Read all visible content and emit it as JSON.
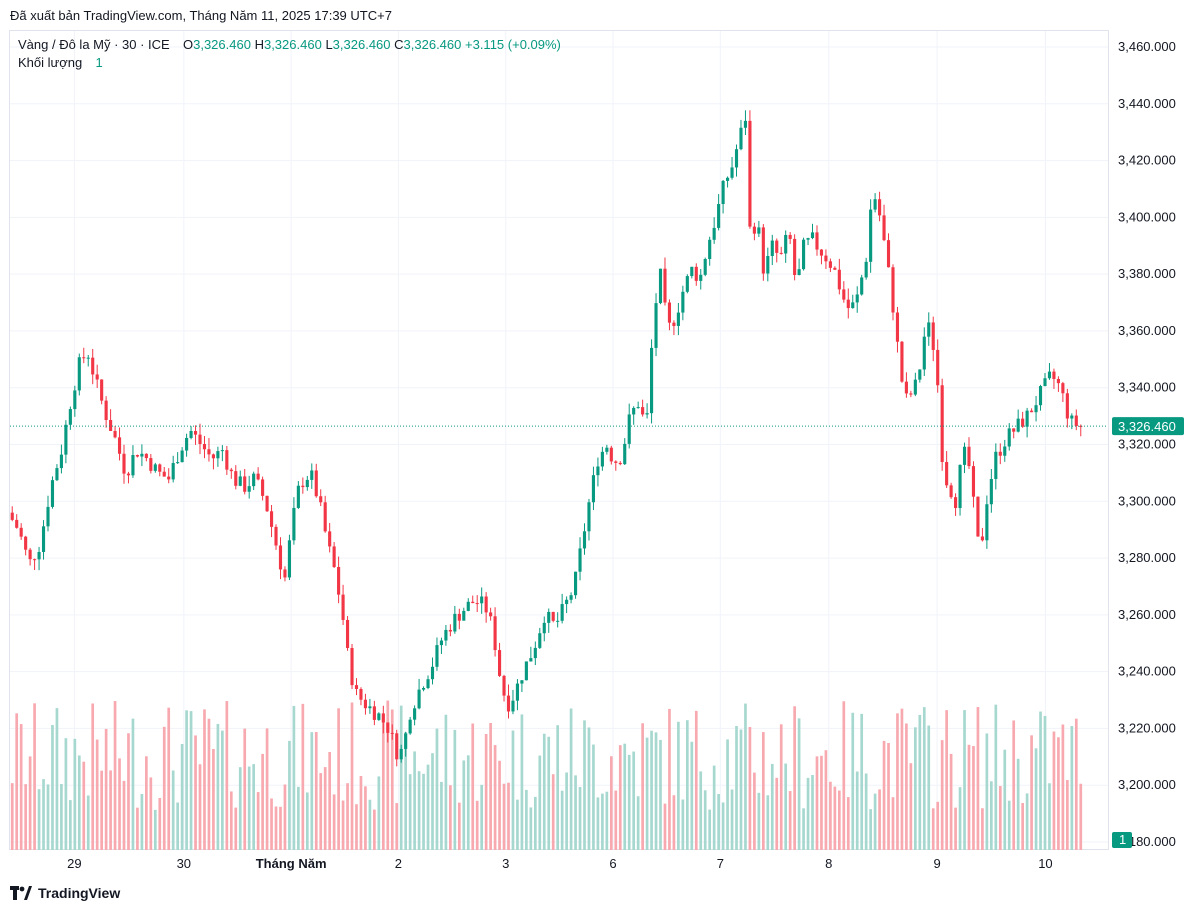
{
  "header": {
    "export_text": "Đã xuất bản TradingView.com, Tháng Năm 11, 2025 17:39 UTC+7"
  },
  "legend": {
    "symbol": "Vàng / Đô la Mỹ · 30 · ICE",
    "o_label": "O",
    "o_value": "3,326.460",
    "h_label": "H",
    "h_value": "3,326.460",
    "l_label": "L",
    "l_value": "3,326.460",
    "c_label": "C",
    "c_value": "3,326.460",
    "change": "+3.115 (+0.09%)",
    "volume_label": "Khối lượng",
    "volume_value": "1"
  },
  "footer": {
    "brand": "TradingView"
  },
  "colors": {
    "up": "#089981",
    "down": "#f23645",
    "grid": "#f0f3fa",
    "price_line": "#089981",
    "vol_up": "#a6d8cf",
    "vol_down": "#f7a9af"
  },
  "chart_data": {
    "type": "candlestick",
    "timeframe": "30",
    "ylim": [
      3180,
      3460
    ],
    "y_ticks": [
      "3,460.000",
      "3,440.000",
      "3,420.000",
      "3,400.000",
      "3,380.000",
      "3,360.000",
      "3,340.000",
      "3,320.000",
      "3,300.000",
      "3,280.000",
      "3,260.000",
      "3,240.000",
      "3,220.000",
      "3,200.000",
      "3,180.000"
    ],
    "y_tick_values": [
      3460,
      3440,
      3420,
      3400,
      3380,
      3360,
      3340,
      3320,
      3300,
      3280,
      3260,
      3240,
      3220,
      3200,
      3180
    ],
    "last_price": 3326.46,
    "last_price_label": "3,326.460",
    "last_volume_label": "1",
    "x_ticks": [
      {
        "label": "29",
        "t": 0.06,
        "bold": false
      },
      {
        "label": "30",
        "t": 0.162,
        "bold": false
      },
      {
        "label": "Tháng Năm",
        "t": 0.262,
        "bold": true
      },
      {
        "label": "2",
        "t": 0.362,
        "bold": false
      },
      {
        "label": "3",
        "t": 0.462,
        "bold": false
      },
      {
        "label": "6",
        "t": 0.562,
        "bold": false
      },
      {
        "label": "7",
        "t": 0.662,
        "bold": false
      },
      {
        "label": "8",
        "t": 0.763,
        "bold": false
      },
      {
        "label": "9",
        "t": 0.864,
        "bold": false
      },
      {
        "label": "10",
        "t": 0.965,
        "bold": false
      }
    ],
    "price_path": [
      [
        0.0,
        3296
      ],
      [
        0.01,
        3290
      ],
      [
        0.02,
        3278
      ],
      [
        0.03,
        3285
      ],
      [
        0.04,
        3305
      ],
      [
        0.05,
        3318
      ],
      [
        0.06,
        3338
      ],
      [
        0.068,
        3350
      ],
      [
        0.075,
        3352
      ],
      [
        0.082,
        3342
      ],
      [
        0.09,
        3332
      ],
      [
        0.1,
        3322
      ],
      [
        0.11,
        3310
      ],
      [
        0.12,
        3318
      ],
      [
        0.13,
        3315
      ],
      [
        0.14,
        3310
      ],
      [
        0.15,
        3308
      ],
      [
        0.16,
        3318
      ],
      [
        0.17,
        3325
      ],
      [
        0.18,
        3320
      ],
      [
        0.19,
        3315
      ],
      [
        0.2,
        3318
      ],
      [
        0.21,
        3308
      ],
      [
        0.22,
        3305
      ],
      [
        0.23,
        3308
      ],
      [
        0.24,
        3300
      ],
      [
        0.25,
        3285
      ],
      [
        0.258,
        3272
      ],
      [
        0.265,
        3292
      ],
      [
        0.272,
        3306
      ],
      [
        0.282,
        3310
      ],
      [
        0.29,
        3300
      ],
      [
        0.298,
        3285
      ],
      [
        0.305,
        3275
      ],
      [
        0.312,
        3260
      ],
      [
        0.318,
        3242
      ],
      [
        0.325,
        3232
      ],
      [
        0.335,
        3228
      ],
      [
        0.345,
        3225
      ],
      [
        0.355,
        3220
      ],
      [
        0.362,
        3212
      ],
      [
        0.368,
        3212
      ],
      [
        0.375,
        3226
      ],
      [
        0.385,
        3235
      ],
      [
        0.395,
        3242
      ],
      [
        0.405,
        3252
      ],
      [
        0.415,
        3258
      ],
      [
        0.425,
        3262
      ],
      [
        0.435,
        3265
      ],
      [
        0.445,
        3263
      ],
      [
        0.452,
        3255
      ],
      [
        0.458,
        3240
      ],
      [
        0.465,
        3228
      ],
      [
        0.472,
        3232
      ],
      [
        0.48,
        3240
      ],
      [
        0.49,
        3248
      ],
      [
        0.5,
        3260
      ],
      [
        0.51,
        3256
      ],
      [
        0.518,
        3262
      ],
      [
        0.528,
        3270
      ],
      [
        0.535,
        3285
      ],
      [
        0.542,
        3300
      ],
      [
        0.55,
        3315
      ],
      [
        0.558,
        3320
      ],
      [
        0.565,
        3314
      ],
      [
        0.572,
        3316
      ],
      [
        0.58,
        3330
      ],
      [
        0.588,
        3335
      ],
      [
        0.595,
        3325
      ],
      [
        0.602,
        3365
      ],
      [
        0.608,
        3380
      ],
      [
        0.615,
        3360
      ],
      [
        0.622,
        3365
      ],
      [
        0.63,
        3375
      ],
      [
        0.638,
        3382
      ],
      [
        0.645,
        3378
      ],
      [
        0.652,
        3390
      ],
      [
        0.66,
        3400
      ],
      [
        0.668,
        3412
      ],
      [
        0.675,
        3418
      ],
      [
        0.682,
        3428
      ],
      [
        0.688,
        3436
      ],
      [
        0.692,
        3392
      ],
      [
        0.698,
        3400
      ],
      [
        0.705,
        3380
      ],
      [
        0.712,
        3390
      ],
      [
        0.72,
        3385
      ],
      [
        0.728,
        3395
      ],
      [
        0.735,
        3375
      ],
      [
        0.742,
        3390
      ],
      [
        0.75,
        3392
      ],
      [
        0.758,
        3388
      ],
      [
        0.765,
        3385
      ],
      [
        0.772,
        3380
      ],
      [
        0.778,
        3372
      ],
      [
        0.785,
        3367
      ],
      [
        0.792,
        3372
      ],
      [
        0.8,
        3386
      ],
      [
        0.806,
        3410
      ],
      [
        0.812,
        3402
      ],
      [
        0.818,
        3388
      ],
      [
        0.824,
        3372
      ],
      [
        0.83,
        3352
      ],
      [
        0.836,
        3335
      ],
      [
        0.842,
        3338
      ],
      [
        0.848,
        3342
      ],
      [
        0.854,
        3358
      ],
      [
        0.86,
        3362
      ],
      [
        0.866,
        3345
      ],
      [
        0.872,
        3310
      ],
      [
        0.878,
        3305
      ],
      [
        0.884,
        3300
      ],
      [
        0.89,
        3318
      ],
      [
        0.896,
        3312
      ],
      [
        0.902,
        3292
      ],
      [
        0.906,
        3280
      ],
      [
        0.912,
        3300
      ],
      [
        0.92,
        3315
      ],
      [
        0.93,
        3322
      ],
      [
        0.94,
        3326
      ],
      [
        0.95,
        3330
      ],
      [
        0.958,
        3335
      ],
      [
        0.966,
        3340
      ],
      [
        0.972,
        3344
      ],
      [
        0.978,
        3342
      ],
      [
        0.984,
        3336
      ],
      [
        0.99,
        3328
      ],
      [
        1.0,
        3326.46
      ]
    ]
  }
}
